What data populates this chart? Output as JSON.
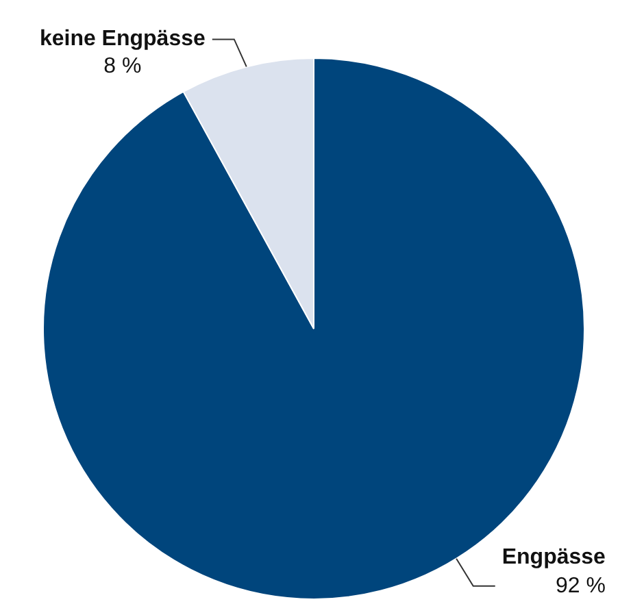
{
  "chart_data": {
    "type": "pie",
    "categories": [
      "Engpässe",
      "keine Engpässe"
    ],
    "values": [
      92,
      8
    ],
    "colors": [
      "#00457c",
      "#dbe2ee"
    ],
    "value_labels": [
      "92 %",
      "8 %"
    ],
    "legend": false
  }
}
